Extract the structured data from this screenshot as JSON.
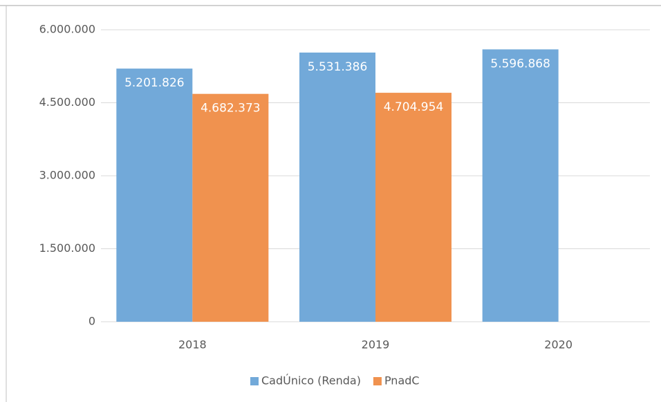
{
  "chart_data": {
    "type": "bar",
    "categories": [
      "2018",
      "2019",
      "2020"
    ],
    "series": [
      {
        "name": "CadÚnico (Renda)",
        "color": "#72a9d9",
        "values": [
          5201826,
          5531386,
          5596868
        ],
        "value_labels": [
          "5.201.826",
          "5.531.386",
          "5.596.868"
        ]
      },
      {
        "name": "PnadC",
        "color": "#f0924f",
        "values": [
          4682373,
          4704954,
          null
        ],
        "value_labels": [
          "4.682.373",
          "4.704.954",
          null
        ]
      }
    ],
    "ylim": [
      0,
      6000000
    ],
    "yticks": [
      0,
      {
        "value": 1500000,
        "label": "1.500.000"
      },
      {
        "value": 3000000,
        "label": "3.000.000"
      },
      {
        "value": 4500000,
        "label": "4.500.000"
      },
      {
        "value": 6000000,
        "label": "6.000.000"
      }
    ],
    "grid": true,
    "legend": "bottom"
  }
}
